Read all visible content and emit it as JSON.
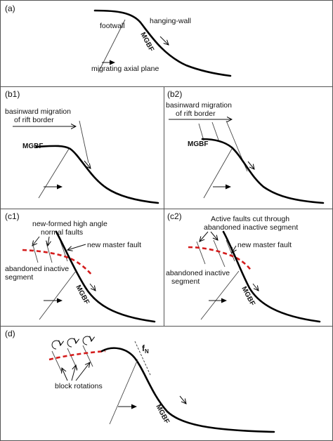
{
  "panels": {
    "a": {
      "label": "(a)",
      "footwall": "footwall",
      "hanging_wall": "hanging-wall",
      "fault": "MGBF",
      "axial": "migrating axial plane"
    },
    "b1": {
      "label": "(b1)",
      "migration_line1": "basinward migration",
      "migration_line2": "of rift border",
      "fault": "MGBF"
    },
    "b2": {
      "label": "(b2)",
      "migration_line1": "basinward migration",
      "migration_line2": "of rift border",
      "fault": "MGBF"
    },
    "c1": {
      "label": "(c1)",
      "new_faults_line1": "new-formed high angle",
      "new_faults_line2": "normal faults",
      "master": "new master fault",
      "abandoned_line1": "abandoned inactive",
      "abandoned_line2": "segment",
      "fault": "MGBF"
    },
    "c2": {
      "label": "(c2)",
      "active_line1": "Active faults cut through",
      "active_line2": "abandoned inactive segment",
      "master": "new master fault",
      "abandoned_line1": "abandoned inactive",
      "abandoned_line2": "segment",
      "fault": "MGBF"
    },
    "d": {
      "label": "(d)",
      "rotations": "block rotations",
      "fn_main": "f",
      "fn_sub": "N",
      "fault": "MGBF"
    }
  }
}
